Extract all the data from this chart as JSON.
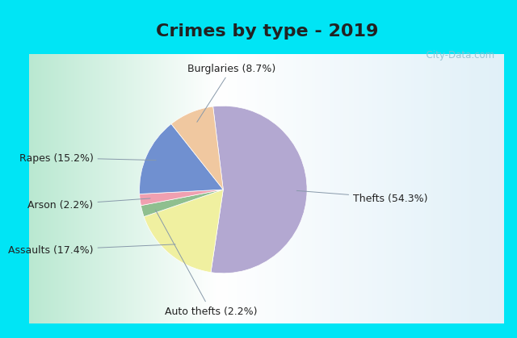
{
  "title": "Crimes by type - 2019",
  "labels": [
    "Thefts",
    "Assaults",
    "Auto thefts",
    "Arson",
    "Rapes",
    "Burglaries"
  ],
  "values": [
    54.3,
    17.4,
    2.2,
    2.2,
    15.2,
    8.7
  ],
  "colors": [
    "#b3a8d1",
    "#f0f0a0",
    "#8fbf8f",
    "#f0a0b0",
    "#7090d0",
    "#f0c8a0"
  ],
  "label_format": [
    "Thefts (54.3%)",
    "Assaults (17.4%)",
    "Auto thefts (2.2%)",
    "Arson (2.2%)",
    "Rapes (15.2%)",
    "Burglaries (8.7%)"
  ],
  "background_top": "#00e5f5",
  "background_body_left": "#b8e8d0",
  "background_body_right": "#e0f0f8",
  "title_fontsize": 16,
  "label_fontsize": 9,
  "watermark": "  City-Data.com",
  "startangle": 97,
  "title_color": "#222222"
}
